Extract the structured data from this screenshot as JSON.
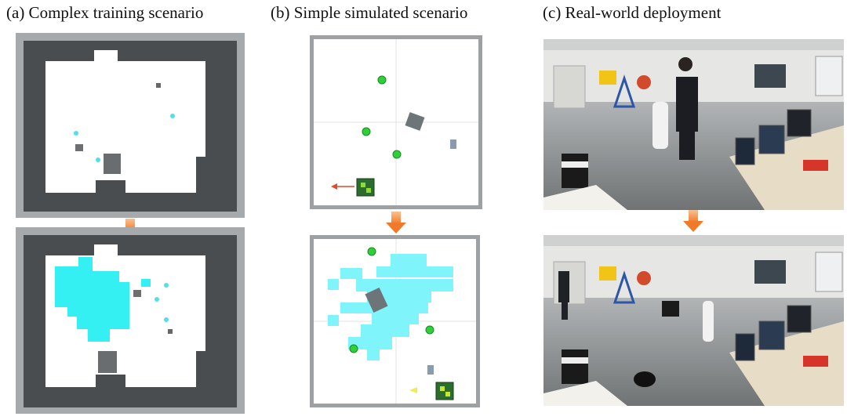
{
  "panels": [
    {
      "caption": "(a) Complex training scenario"
    },
    {
      "caption": "(b) Simple simulated scenario"
    },
    {
      "caption": "(c) Real-world deployment"
    }
  ]
}
